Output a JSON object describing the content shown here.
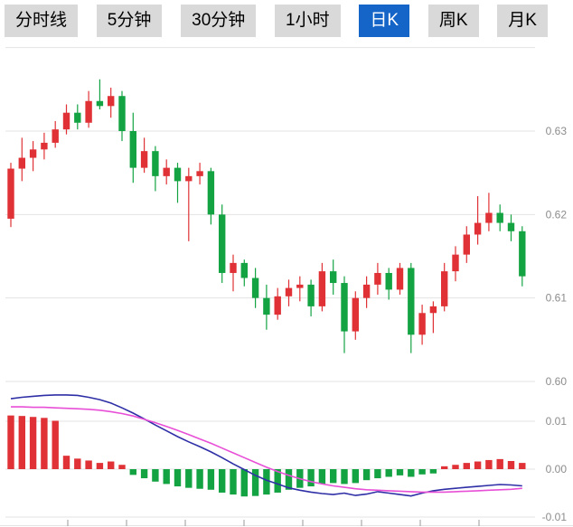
{
  "tabs": {
    "items": [
      {
        "label": "分时线",
        "active": false
      },
      {
        "label": "5分钟",
        "active": false
      },
      {
        "label": "30分钟",
        "active": false
      },
      {
        "label": "1小时",
        "active": false
      },
      {
        "label": "日K",
        "active": true
      },
      {
        "label": "周K",
        "active": false
      },
      {
        "label": "月K",
        "active": false
      }
    ],
    "active_bg": "#1565c8",
    "active_text": "#ffffff",
    "inactive_bg": "#d9d9d9",
    "inactive_text": "#000000"
  },
  "chart_data": {
    "type": "candlestick+macd",
    "title": "",
    "legend_position": "none",
    "grid": true,
    "price_axis": [
      {
        "v": 0.64,
        "label": ""
      },
      {
        "v": 0.63,
        "label": "0.63"
      },
      {
        "v": 0.62,
        "label": "0.62"
      },
      {
        "v": 0.61,
        "label": "0.61"
      },
      {
        "v": 0.6,
        "label": "0.60"
      }
    ],
    "macd_axis": [
      {
        "v": 0.01,
        "label": "0.01"
      },
      {
        "v": 0.0,
        "label": "0.00"
      },
      {
        "v": -0.01,
        "label": "-0.01"
      }
    ],
    "ylim_price": [
      0.5995,
      0.6395
    ],
    "ylim_macd": [
      -0.011,
      0.016
    ],
    "x_tick_count": 8,
    "colors": {
      "up": "#e03236",
      "down": "#14a343",
      "dif_line": "#2e2ea6",
      "dea_line": "#e84fd7",
      "grid": "#e3e3e3",
      "axis_text": "#8c8c8c",
      "tick": "#9a9a9a"
    },
    "candles": [
      [
        0.6195,
        0.6262,
        0.6185,
        0.6255
      ],
      [
        0.6255,
        0.6292,
        0.624,
        0.6268
      ],
      [
        0.6268,
        0.6288,
        0.6252,
        0.6278
      ],
      [
        0.6278,
        0.6298,
        0.6266,
        0.6286
      ],
      [
        0.6286,
        0.6312,
        0.628,
        0.6302
      ],
      [
        0.6302,
        0.6332,
        0.6296,
        0.6322
      ],
      [
        0.6322,
        0.6332,
        0.6302,
        0.631
      ],
      [
        0.631,
        0.6348,
        0.6304,
        0.6336
      ],
      [
        0.6336,
        0.6362,
        0.6326,
        0.633
      ],
      [
        0.633,
        0.6352,
        0.6316,
        0.6342
      ],
      [
        0.6342,
        0.6348,
        0.6288,
        0.63
      ],
      [
        0.63,
        0.6322,
        0.6238,
        0.6256
      ],
      [
        0.6256,
        0.6292,
        0.625,
        0.6276
      ],
      [
        0.6276,
        0.6282,
        0.6228,
        0.6246
      ],
      [
        0.6246,
        0.6266,
        0.6236,
        0.6256
      ],
      [
        0.6256,
        0.6262,
        0.6214,
        0.624
      ],
      [
        0.624,
        0.6256,
        0.6168,
        0.6246
      ],
      [
        0.6246,
        0.6262,
        0.6236,
        0.6252
      ],
      [
        0.6252,
        0.6256,
        0.6188,
        0.62
      ],
      [
        0.62,
        0.6212,
        0.6118,
        0.613
      ],
      [
        0.613,
        0.6152,
        0.6108,
        0.6142
      ],
      [
        0.6142,
        0.6146,
        0.6114,
        0.6124
      ],
      [
        0.6124,
        0.6136,
        0.6088,
        0.61
      ],
      [
        0.61,
        0.6116,
        0.6062,
        0.608
      ],
      [
        0.608,
        0.6112,
        0.6074,
        0.6102
      ],
      [
        0.6102,
        0.6122,
        0.609,
        0.6112
      ],
      [
        0.6112,
        0.6126,
        0.6096,
        0.6116
      ],
      [
        0.6116,
        0.6122,
        0.6078,
        0.609
      ],
      [
        0.609,
        0.6142,
        0.6084,
        0.6132
      ],
      [
        0.6132,
        0.6146,
        0.6104,
        0.6118
      ],
      [
        0.6118,
        0.6126,
        0.6034,
        0.606
      ],
      [
        0.606,
        0.6108,
        0.605,
        0.61
      ],
      [
        0.61,
        0.6126,
        0.6088,
        0.6116
      ],
      [
        0.6116,
        0.6142,
        0.6104,
        0.613
      ],
      [
        0.613,
        0.6136,
        0.6098,
        0.611
      ],
      [
        0.611,
        0.6142,
        0.6104,
        0.6136
      ],
      [
        0.6136,
        0.6142,
        0.6034,
        0.6056
      ],
      [
        0.6056,
        0.6092,
        0.6044,
        0.6082
      ],
      [
        0.6082,
        0.6096,
        0.6058,
        0.609
      ],
      [
        0.609,
        0.6142,
        0.6084,
        0.6132
      ],
      [
        0.6132,
        0.6162,
        0.612,
        0.6152
      ],
      [
        0.6152,
        0.6186,
        0.6142,
        0.6176
      ],
      [
        0.6176,
        0.6222,
        0.6164,
        0.619
      ],
      [
        0.619,
        0.6226,
        0.618,
        0.6202
      ],
      [
        0.6202,
        0.6212,
        0.618,
        0.619
      ],
      [
        0.619,
        0.62,
        0.6168,
        0.618
      ],
      [
        0.618,
        0.6186,
        0.6114,
        0.6126
      ]
    ],
    "macd": {
      "histogram": [
        0.0112,
        0.0111,
        0.0109,
        0.0107,
        0.0101,
        0.0028,
        0.0022,
        0.0018,
        0.0013,
        0.0016,
        0.0009,
        -0.0012,
        -0.0019,
        -0.0026,
        -0.0031,
        -0.0036,
        -0.0039,
        -0.0041,
        -0.0043,
        -0.0049,
        -0.0053,
        -0.0057,
        -0.0056,
        -0.0053,
        -0.0049,
        -0.0043,
        -0.0039,
        -0.0036,
        -0.0031,
        -0.0029,
        -0.0031,
        -0.0029,
        -0.0023,
        -0.0019,
        -0.0016,
        -0.0013,
        -0.0016,
        -0.0011,
        -0.0009,
        0.0006,
        0.0009,
        0.0013,
        0.0016,
        0.0019,
        0.0021,
        0.0017,
        0.0013
      ],
      "dif": [
        0.0147,
        0.015,
        0.0152,
        0.0154,
        0.0155,
        0.0155,
        0.0154,
        0.015,
        0.0145,
        0.0138,
        0.0128,
        0.0117,
        0.0105,
        0.0092,
        0.008,
        0.0068,
        0.0057,
        0.0047,
        0.0036,
        0.0024,
        0.0011,
        -0.0001,
        -0.0013,
        -0.0023,
        -0.0031,
        -0.0039,
        -0.0044,
        -0.0048,
        -0.0051,
        -0.0053,
        -0.005,
        -0.0055,
        -0.0052,
        -0.0047,
        -0.005,
        -0.0053,
        -0.0056,
        -0.005,
        -0.0045,
        -0.0042,
        -0.004,
        -0.0038,
        -0.0036,
        -0.0034,
        -0.0032,
        -0.0033,
        -0.0035
      ],
      "dea": [
        0.013,
        0.013,
        0.0129,
        0.0129,
        0.0128,
        0.0127,
        0.0126,
        0.0125,
        0.0123,
        0.012,
        0.0116,
        0.0111,
        0.0104,
        0.0097,
        0.0089,
        0.0081,
        0.0072,
        0.0063,
        0.0054,
        0.0044,
        0.0034,
        0.0024,
        0.0014,
        0.0004,
        -0.0005,
        -0.0013,
        -0.002,
        -0.0026,
        -0.0031,
        -0.0035,
        -0.0038,
        -0.0041,
        -0.0043,
        -0.0044,
        -0.0045,
        -0.0046,
        -0.0047,
        -0.0048,
        -0.0048,
        -0.0048,
        -0.0047,
        -0.0046,
        -0.0045,
        -0.0044,
        -0.0043,
        -0.0042,
        -0.004
      ]
    }
  }
}
